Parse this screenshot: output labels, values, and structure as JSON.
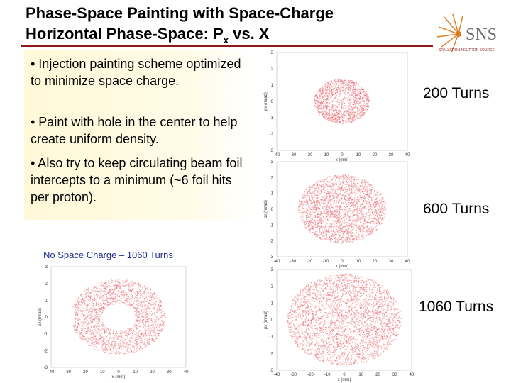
{
  "slide": {
    "title_line1": "Phase-Space Painting with Space-Charge",
    "title_line2_main": "Horizontal Phase-Space: P",
    "title_line2_sub": "x",
    "title_line2_end": " vs. X"
  },
  "logo": {
    "text": "SNS",
    "caption": "SPALLATION NEUTRON SOURCE"
  },
  "bullets": [
    "• Injection painting scheme optimized to minimize space charge.",
    "• Paint with hole in the center to help create uniform density.",
    "• Also try to keep circulating beam foil intercepts to a minimum (~6 foil hits per proton)."
  ],
  "no_space_charge_label": "No Space Charge – 1060 Turns",
  "turn_labels": {
    "t200": "200 Turns",
    "t600": "600 Turns",
    "t1060": "1060 Turns"
  },
  "plot_axes": {
    "xlabel": "x (mm)",
    "ylabel": "px (mrad)",
    "xticks": [
      "-40",
      "-30",
      "-20",
      "-10",
      "0",
      "10",
      "20",
      "30",
      "40"
    ],
    "yticks": [
      "3",
      "2",
      "1",
      "0",
      "-1",
      "-2",
      "-3"
    ],
    "xticks_nsc": [
      "-40",
      "-30",
      "-20",
      "-10",
      "0",
      "10",
      "20",
      "30",
      "40"
    ]
  },
  "colors": {
    "dots": "#e8646a",
    "title_rule": "#8b1a1a",
    "label_blue": "#1f2f8f",
    "logo_orange": "#e07a1a"
  },
  "chart_data": [
    {
      "type": "scatter",
      "name": "200 Turns",
      "shape": "hollow ring",
      "x_range": [
        -40,
        40
      ],
      "y_range": [
        -3,
        3
      ],
      "outer_radius_mm": 17,
      "inner_radius_mm": 7,
      "inner_density": "partially filled"
    },
    {
      "type": "scatter",
      "name": "600 Turns",
      "shape": "filled ellipse",
      "x_range": [
        -40,
        40
      ],
      "y_range": [
        -3,
        3
      ],
      "outer_radius_mm": 27
    },
    {
      "type": "scatter",
      "name": "1060 Turns",
      "shape": "filled ellipse",
      "x_range": [
        -40,
        40
      ],
      "y_range": [
        -3,
        3
      ],
      "outer_radius_mm": 34
    },
    {
      "type": "scatter",
      "name": "No Space Charge – 1060 Turns",
      "shape": "hollow ring",
      "x_range": [
        -40,
        40
      ],
      "y_range": [
        -3,
        3
      ],
      "outer_radius_mm": 28,
      "inner_radius_mm": 10
    }
  ]
}
